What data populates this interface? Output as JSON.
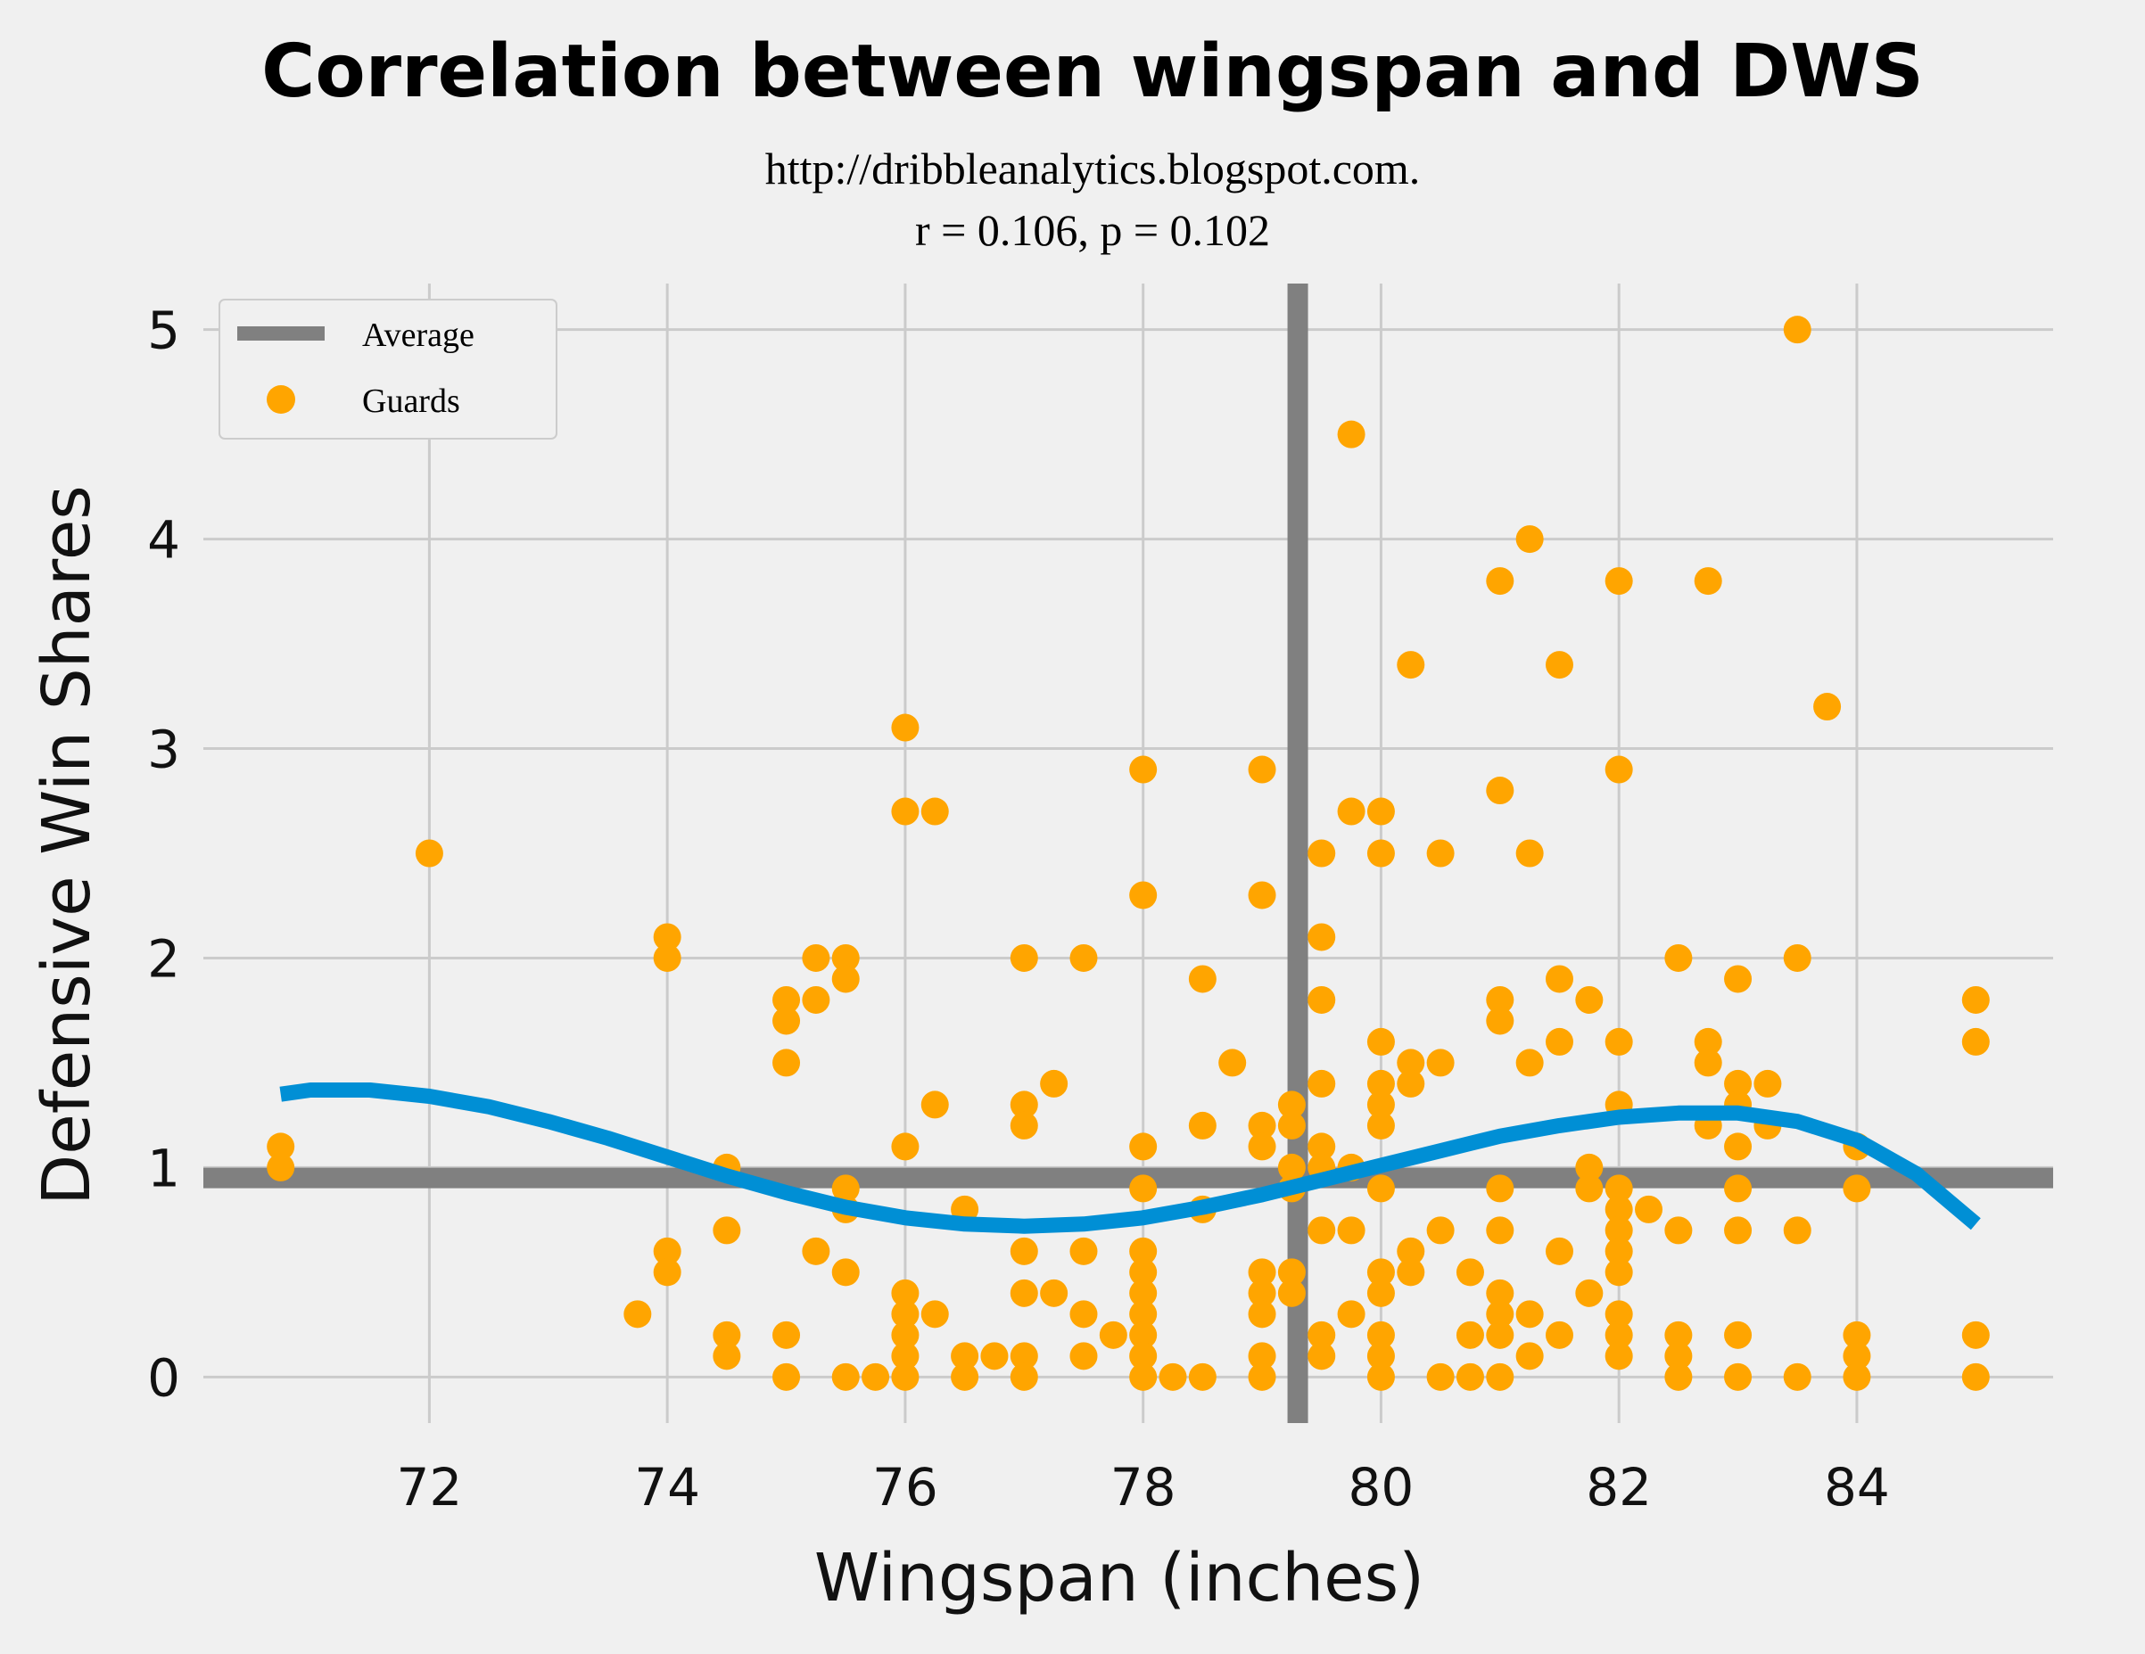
{
  "chart_data": {
    "type": "scatter",
    "title": "Correlation between wingspan and DWS",
    "subtitle_line1": "http://dribbleanalytics.blogspot.com.",
    "subtitle_line2": "r = 0.106, p = 0.102",
    "xlabel": "Wingspan (inches)",
    "ylabel": "Defensive Win Shares",
    "xlim": [
      70.1,
      85.65
    ],
    "ylim": [
      -0.22,
      5.22
    ],
    "xticks": [
      72,
      74,
      76,
      78,
      80,
      82,
      84
    ],
    "xtick_labels": [
      "72",
      "74",
      "76",
      "78",
      "80",
      "82",
      "84"
    ],
    "yticks": [
      0,
      1,
      2,
      3,
      4,
      5
    ],
    "ytick_labels": [
      "0",
      "1",
      "2",
      "3",
      "4",
      "5"
    ],
    "grid": true,
    "legend_position": "top-left",
    "legend": [
      {
        "label": "Average",
        "kind": "line",
        "color": "#808080"
      },
      {
        "label": "Guards",
        "kind": "marker",
        "color": "#FFA500"
      }
    ],
    "average_lines": {
      "x": 79.3,
      "y": 0.95,
      "color": "#808080"
    },
    "fit_curve": {
      "color": "#008FD5",
      "x": [
        70.75,
        71.0,
        71.5,
        72.0,
        72.5,
        73.0,
        73.5,
        74.0,
        74.5,
        75.0,
        75.5,
        76.0,
        76.5,
        77.0,
        77.5,
        78.0,
        78.5,
        79.0,
        79.5,
        80.0,
        80.5,
        81.0,
        81.5,
        82.0,
        82.5,
        83.0,
        83.5,
        84.0,
        84.5,
        85.0
      ],
      "y": [
        1.35,
        1.37,
        1.37,
        1.34,
        1.29,
        1.22,
        1.14,
        1.05,
        0.96,
        0.88,
        0.81,
        0.76,
        0.73,
        0.72,
        0.73,
        0.76,
        0.81,
        0.87,
        0.94,
        1.01,
        1.08,
        1.15,
        1.2,
        1.24,
        1.26,
        1.26,
        1.22,
        1.13,
        0.97,
        0.73
      ]
    },
    "series": [
      {
        "name": "Guards",
        "color": "#FFA500",
        "points": [
          [
            70.75,
            1.1
          ],
          [
            70.75,
            1.0
          ],
          [
            72.0,
            2.5
          ],
          [
            73.75,
            0.3
          ],
          [
            74.0,
            2.1
          ],
          [
            74.0,
            2.0
          ],
          [
            74.0,
            0.6
          ],
          [
            74.0,
            0.5
          ],
          [
            74.5,
            1.0
          ],
          [
            74.5,
            0.7
          ],
          [
            74.5,
            0.2
          ],
          [
            74.5,
            0.1
          ],
          [
            75.0,
            1.8
          ],
          [
            75.0,
            1.7
          ],
          [
            75.0,
            1.5
          ],
          [
            75.0,
            0.2
          ],
          [
            75.0,
            0.0
          ],
          [
            75.25,
            2.0
          ],
          [
            75.25,
            1.8
          ],
          [
            75.25,
            0.6
          ],
          [
            75.5,
            2.0
          ],
          [
            75.5,
            1.9
          ],
          [
            75.5,
            0.9
          ],
          [
            75.5,
            0.8
          ],
          [
            75.5,
            0.5
          ],
          [
            75.5,
            0.0
          ],
          [
            75.75,
            0.0
          ],
          [
            76.0,
            3.1
          ],
          [
            76.0,
            2.7
          ],
          [
            76.0,
            1.1
          ],
          [
            76.0,
            0.4
          ],
          [
            76.0,
            0.3
          ],
          [
            76.0,
            0.2
          ],
          [
            76.0,
            0.1
          ],
          [
            76.0,
            0.0
          ],
          [
            76.25,
            2.7
          ],
          [
            76.25,
            1.3
          ],
          [
            76.25,
            0.3
          ],
          [
            76.5,
            0.8
          ],
          [
            76.5,
            0.1
          ],
          [
            76.5,
            0.0
          ],
          [
            76.75,
            0.1
          ],
          [
            77.0,
            2.0
          ],
          [
            77.0,
            1.3
          ],
          [
            77.0,
            1.2
          ],
          [
            77.0,
            0.6
          ],
          [
            77.0,
            0.4
          ],
          [
            77.0,
            0.1
          ],
          [
            77.0,
            0.0
          ],
          [
            77.25,
            1.4
          ],
          [
            77.25,
            0.4
          ],
          [
            77.5,
            2.0
          ],
          [
            77.5,
            0.6
          ],
          [
            77.5,
            0.3
          ],
          [
            77.5,
            0.1
          ],
          [
            77.75,
            0.2
          ],
          [
            78.0,
            2.9
          ],
          [
            78.0,
            2.3
          ],
          [
            78.0,
            1.1
          ],
          [
            78.0,
            0.9
          ],
          [
            78.0,
            0.6
          ],
          [
            78.0,
            0.5
          ],
          [
            78.0,
            0.4
          ],
          [
            78.0,
            0.3
          ],
          [
            78.0,
            0.2
          ],
          [
            78.0,
            0.1
          ],
          [
            78.0,
            0.0
          ],
          [
            78.25,
            0.0
          ],
          [
            78.5,
            1.9
          ],
          [
            78.5,
            1.2
          ],
          [
            78.5,
            0.8
          ],
          [
            78.5,
            0.0
          ],
          [
            78.75,
            1.5
          ],
          [
            79.0,
            2.9
          ],
          [
            79.0,
            2.3
          ],
          [
            79.0,
            1.2
          ],
          [
            79.0,
            1.1
          ],
          [
            79.0,
            0.5
          ],
          [
            79.0,
            0.4
          ],
          [
            79.0,
            0.3
          ],
          [
            79.0,
            0.1
          ],
          [
            79.0,
            0.0
          ],
          [
            79.25,
            1.3
          ],
          [
            79.25,
            1.2
          ],
          [
            79.25,
            1.0
          ],
          [
            79.25,
            0.9
          ],
          [
            79.25,
            0.5
          ],
          [
            79.25,
            0.4
          ],
          [
            79.5,
            2.5
          ],
          [
            79.5,
            2.1
          ],
          [
            79.5,
            1.8
          ],
          [
            79.5,
            1.4
          ],
          [
            79.5,
            1.1
          ],
          [
            79.5,
            1.0
          ],
          [
            79.5,
            0.7
          ],
          [
            79.5,
            0.2
          ],
          [
            79.5,
            0.1
          ],
          [
            79.75,
            4.5
          ],
          [
            79.75,
            2.7
          ],
          [
            79.75,
            1.0
          ],
          [
            79.75,
            0.7
          ],
          [
            79.75,
            0.3
          ],
          [
            80.0,
            2.7
          ],
          [
            80.0,
            2.5
          ],
          [
            80.0,
            1.6
          ],
          [
            80.0,
            1.4
          ],
          [
            80.0,
            1.3
          ],
          [
            80.0,
            1.2
          ],
          [
            80.0,
            0.9
          ],
          [
            80.0,
            0.5
          ],
          [
            80.0,
            0.4
          ],
          [
            80.0,
            0.2
          ],
          [
            80.0,
            0.1
          ],
          [
            80.0,
            0.0
          ],
          [
            80.25,
            3.4
          ],
          [
            80.25,
            1.5
          ],
          [
            80.25,
            1.4
          ],
          [
            80.25,
            0.6
          ],
          [
            80.25,
            0.5
          ],
          [
            80.5,
            2.5
          ],
          [
            80.5,
            1.5
          ],
          [
            80.5,
            0.7
          ],
          [
            80.5,
            0.0
          ],
          [
            80.75,
            0.5
          ],
          [
            80.75,
            0.2
          ],
          [
            80.75,
            0.0
          ],
          [
            81.0,
            3.8
          ],
          [
            81.0,
            2.8
          ],
          [
            81.0,
            1.8
          ],
          [
            81.0,
            1.7
          ],
          [
            81.0,
            0.9
          ],
          [
            81.0,
            0.7
          ],
          [
            81.0,
            0.4
          ],
          [
            81.0,
            0.3
          ],
          [
            81.0,
            0.2
          ],
          [
            81.0,
            0.0
          ],
          [
            81.25,
            4.0
          ],
          [
            81.25,
            2.5
          ],
          [
            81.25,
            1.5
          ],
          [
            81.25,
            0.3
          ],
          [
            81.25,
            0.1
          ],
          [
            81.5,
            3.4
          ],
          [
            81.5,
            1.9
          ],
          [
            81.5,
            1.6
          ],
          [
            81.5,
            0.6
          ],
          [
            81.5,
            0.2
          ],
          [
            81.75,
            1.8
          ],
          [
            81.75,
            1.0
          ],
          [
            81.75,
            0.9
          ],
          [
            81.75,
            0.4
          ],
          [
            82.0,
            3.8
          ],
          [
            82.0,
            2.9
          ],
          [
            82.0,
            1.6
          ],
          [
            82.0,
            1.3
          ],
          [
            82.0,
            0.9
          ],
          [
            82.0,
            0.8
          ],
          [
            82.0,
            0.7
          ],
          [
            82.0,
            0.6
          ],
          [
            82.0,
            0.5
          ],
          [
            82.0,
            0.3
          ],
          [
            82.0,
            0.2
          ],
          [
            82.0,
            0.1
          ],
          [
            82.25,
            0.8
          ],
          [
            82.5,
            2.0
          ],
          [
            82.5,
            0.7
          ],
          [
            82.5,
            0.2
          ],
          [
            82.5,
            0.1
          ],
          [
            82.5,
            0.0
          ],
          [
            82.75,
            3.8
          ],
          [
            82.75,
            1.6
          ],
          [
            82.75,
            1.5
          ],
          [
            82.75,
            1.2
          ],
          [
            83.0,
            1.9
          ],
          [
            83.0,
            1.4
          ],
          [
            83.0,
            1.3
          ],
          [
            83.0,
            1.1
          ],
          [
            83.0,
            0.9
          ],
          [
            83.0,
            0.7
          ],
          [
            83.0,
            0.2
          ],
          [
            83.0,
            0.0
          ],
          [
            83.25,
            1.4
          ],
          [
            83.25,
            1.2
          ],
          [
            83.5,
            5.0
          ],
          [
            83.5,
            2.0
          ],
          [
            83.5,
            0.7
          ],
          [
            83.5,
            0.0
          ],
          [
            83.75,
            3.2
          ],
          [
            84.0,
            1.1
          ],
          [
            84.0,
            0.9
          ],
          [
            84.0,
            0.2
          ],
          [
            84.0,
            0.1
          ],
          [
            84.0,
            0.0
          ],
          [
            85.0,
            1.8
          ],
          [
            85.0,
            1.6
          ],
          [
            85.0,
            0.2
          ],
          [
            85.0,
            0.0
          ]
        ]
      }
    ]
  }
}
